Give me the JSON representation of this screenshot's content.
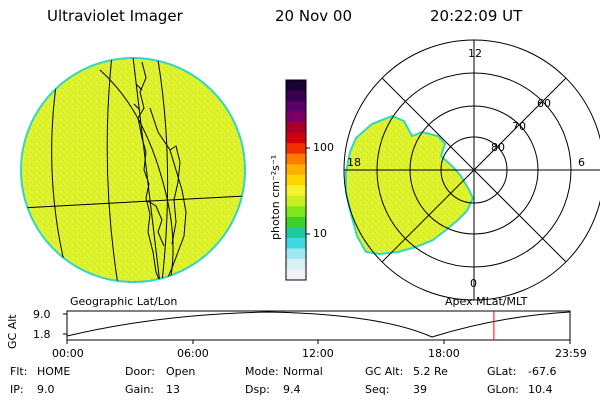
{
  "header": {
    "instrument": "Ultraviolet Imager",
    "date": "20 Nov 00",
    "time": "20:22:09 UT"
  },
  "colors": {
    "image_fill": "#dff22b",
    "image_speckle": "#b7e43a",
    "image_edge": "#33d6c4",
    "line": "#000000",
    "current_time_marker": "#ff0000"
  },
  "geo_panel": {
    "label": "Geographic Lat/Lon"
  },
  "polar_panel": {
    "label": "Apex MLat/MLT",
    "mlt_labels": [
      "12",
      "18",
      "6",
      "0"
    ],
    "lat_labels": [
      "60",
      "70",
      "80"
    ]
  },
  "colorbar": {
    "unit_label": "photon cm⁻²s⁻¹",
    "tick_labels": [
      "100",
      "10"
    ],
    "colors": [
      "#1a0033",
      "#3a0050",
      "#5a006a",
      "#7a0066",
      "#a8002a",
      "#d00010",
      "#f03000",
      "#ff7a00",
      "#ffb000",
      "#ffd700",
      "#f5f030",
      "#c8f020",
      "#80e818",
      "#3cd028",
      "#20c8a0",
      "#40d8e0",
      "#a0e8f0",
      "#d8f0f4",
      "#f0f4f6"
    ]
  },
  "altitude_plot": {
    "ylabel": "GC Alt",
    "yticks": [
      "9.0",
      "1.8"
    ],
    "xticks": [
      "00:00",
      "06:00",
      "12:00",
      "18:00",
      "23:59"
    ],
    "current_time_hours": 20.37
  },
  "footer": {
    "rows": [
      [
        {
          "label": "Flt:",
          "value": "HOME"
        },
        {
          "label": "Door:",
          "value": "Open"
        },
        {
          "label": "Mode:",
          "value": "Normal"
        },
        {
          "label": "GC Alt:",
          "value": "5.2 Re"
        },
        {
          "label": "GLat:",
          "value": "-67.6"
        }
      ],
      [
        {
          "label": "IP:",
          "value": "9.0"
        },
        {
          "label": "Gain:",
          "value": "13"
        },
        {
          "label": "Dsp:",
          "value": "9.4"
        },
        {
          "label": "Seq:",
          "value": "39"
        },
        {
          "label": "GLon:",
          "value": "10.4"
        }
      ]
    ]
  }
}
